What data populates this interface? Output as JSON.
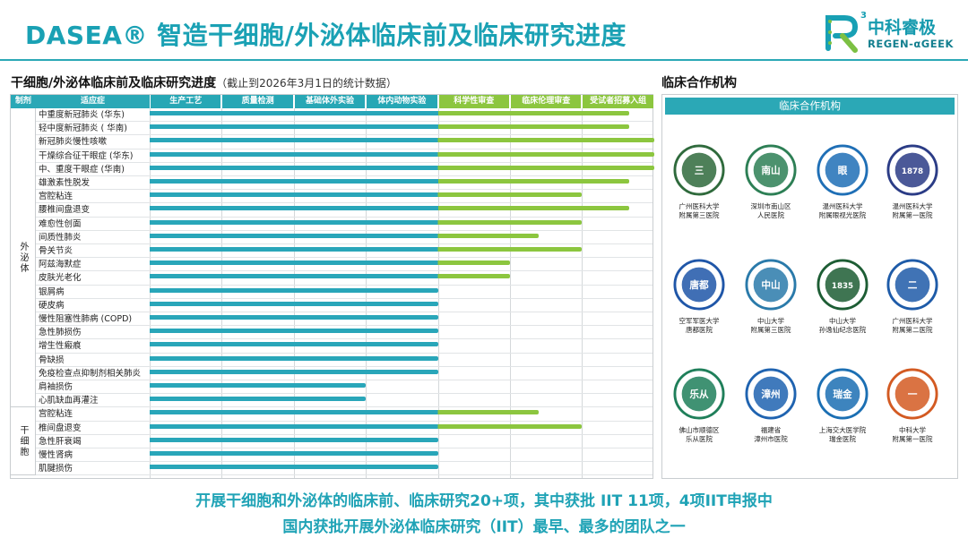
{
  "title": "DASEA® 智造干细胞/外泌体临床前及临床研究进度",
  "logo": {
    "cn": "中科睿极",
    "en": "REGEN-αGEEK",
    "mark_sup": "3"
  },
  "left_section": {
    "title": "干细胞/外泌体临床前及临床研究进度",
    "note": "（截止到2026年3月1日的统计数据）"
  },
  "right_section": {
    "title": "临床合作机构",
    "panel_header": "临床合作机构"
  },
  "table": {
    "col_type": "制剂",
    "col_indication": "适应症",
    "stages": [
      "生产工艺",
      "质量检测",
      "基础体外实验",
      "体内动物实验",
      "科学性审查",
      "临床伦理审查",
      "受试者招募入组"
    ],
    "groups": [
      {
        "name": "外泌体",
        "rows": [
          {
            "label": "中重度新冠肺炎 (华东)",
            "progress": 6.65
          },
          {
            "label": "轻中度新冠肺炎 ( 华南)",
            "progress": 6.65
          },
          {
            "label": "新冠肺炎慢性咳嗽",
            "progress": 7
          },
          {
            "label": "干燥综合征干眼症 (华东)",
            "progress": 7
          },
          {
            "label": "中、重度干眼症 (华南)",
            "progress": 7
          },
          {
            "label": "雄激素性脱发",
            "progress": 6.65
          },
          {
            "label": "宫腔粘连",
            "progress": 6
          },
          {
            "label": "腰椎间盘退变",
            "progress": 6.65
          },
          {
            "label": "难愈性创面",
            "progress": 6
          },
          {
            "label": "间质性肺炎",
            "progress": 5.4
          },
          {
            "label": "骨关节炎",
            "progress": 6
          },
          {
            "label": "阿兹海默症",
            "progress": 5
          },
          {
            "label": "皮肤光老化",
            "progress": 5
          },
          {
            "label": "银屑病",
            "progress": 4
          },
          {
            "label": "硬皮病",
            "progress": 4
          },
          {
            "label": "慢性阻塞性肺病 (COPD)",
            "progress": 4
          },
          {
            "label": "急性肺损伤",
            "progress": 4
          },
          {
            "label": "增生性瘢痕",
            "progress": 4
          },
          {
            "label": "骨缺损",
            "progress": 4
          },
          {
            "label": "免疫检查点抑制剂相关肺炎",
            "progress": 4
          },
          {
            "label": "肩袖损伤",
            "progress": 3
          },
          {
            "label": "心肌缺血再灌注",
            "progress": 3
          }
        ]
      },
      {
        "name": "干细胞",
        "rows": [
          {
            "label": "宫腔粘连",
            "progress": 5.4
          },
          {
            "label": "椎间盘退变",
            "progress": 6
          },
          {
            "label": "急性肝衰竭",
            "progress": 4
          },
          {
            "label": "慢性肾病",
            "progress": 4
          },
          {
            "label": "肌腱损伤",
            "progress": 4
          }
        ]
      }
    ]
  },
  "hospitals": [
    {
      "line1": "广州医科大学",
      "line2": "附属第三医院",
      "seal_text": "三",
      "color": "#2f6a3c"
    },
    {
      "line1": "深圳市南山区",
      "line2": "人民医院",
      "seal_text": "南山",
      "color": "#2d7f55"
    },
    {
      "line1": "温州医科大学",
      "line2": "附属眼视光医院",
      "seal_text": "眼",
      "color": "#1f6fb6"
    },
    {
      "line1": "温州医科大学",
      "line2": "附属第一医院",
      "seal_text": "1878",
      "color": "#2b3c86"
    },
    {
      "line1": "空军军医大学",
      "line2": "唐都医院",
      "seal_text": "唐都",
      "color": "#1f56a8"
    },
    {
      "line1": "中山大学",
      "line2": "附属第三医院",
      "seal_text": "中山",
      "color": "#2a7aaa"
    },
    {
      "line1": "中山大学",
      "line2": "孙逸仙纪念医院",
      "seal_text": "1835",
      "color": "#1d5d34"
    },
    {
      "line1": "广州医科大学",
      "line2": "附属第二医院",
      "seal_text": "二",
      "color": "#1e5ba8"
    },
    {
      "line1": "佛山市顺德区",
      "line2": "乐从医院",
      "seal_text": "乐从",
      "color": "#1f7f5a"
    },
    {
      "line1": "福建省",
      "line2": "漳州市医院",
      "seal_text": "漳州",
      "color": "#1f63b0"
    },
    {
      "line1": "上海交大医学院",
      "line2": "瑞金医院",
      "seal_text": "瑞金",
      "color": "#1b6fb3"
    },
    {
      "line1": "中科大学",
      "line2": "附属第一医院",
      "seal_text": "一",
      "color": "#d35a22"
    }
  ],
  "footer": {
    "line1": "开展干细胞和外泌体的临床前、临床研究20+项，其中获批 IIT 11项，4项IIT申报中",
    "line2": "国内获批开展外泌体临床研究（IIT）最早、最多的团队之一"
  },
  "colors": {
    "accent": "#2ba8b6",
    "bar_blue": "#29a6b9",
    "bar_green": "#8cc63f",
    "stage_hdr_early": "#27a7b5",
    "stage_hdr_late": "#8cc63f"
  }
}
